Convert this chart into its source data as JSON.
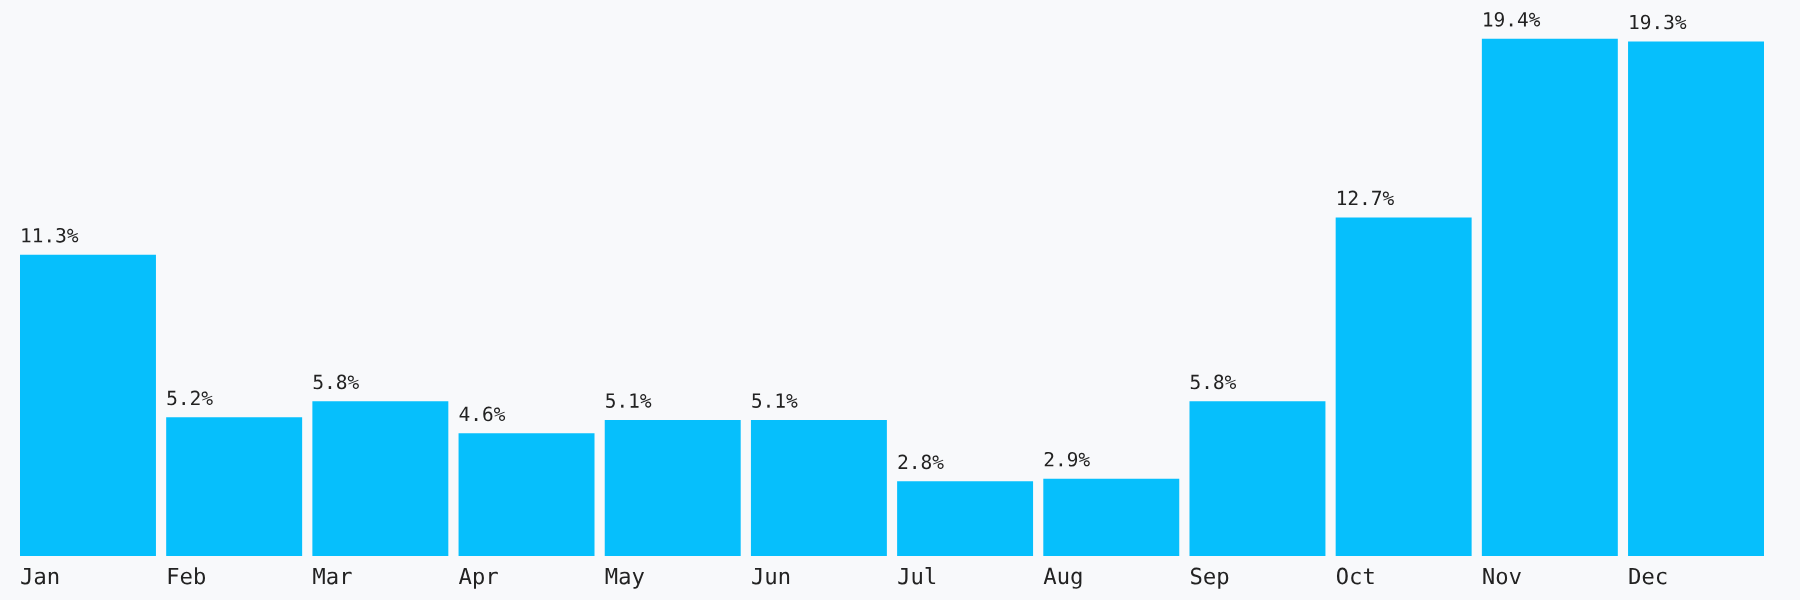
{
  "chart_data": {
    "type": "bar",
    "categories": [
      "Jan",
      "Feb",
      "Mar",
      "Apr",
      "May",
      "Jun",
      "Jul",
      "Aug",
      "Sep",
      "Oct",
      "Nov",
      "Dec"
    ],
    "values": [
      11.3,
      5.2,
      5.8,
      4.6,
      5.1,
      5.1,
      2.8,
      2.9,
      5.8,
      12.7,
      19.4,
      19.3
    ],
    "value_labels": [
      "11.3%",
      "5.2%",
      "5.8%",
      "4.6%",
      "5.1%",
      "5.1%",
      "2.8%",
      "2.9%",
      "5.8%",
      "12.7%",
      "19.4%",
      "19.3%"
    ],
    "color": "#06bffc"
  }
}
